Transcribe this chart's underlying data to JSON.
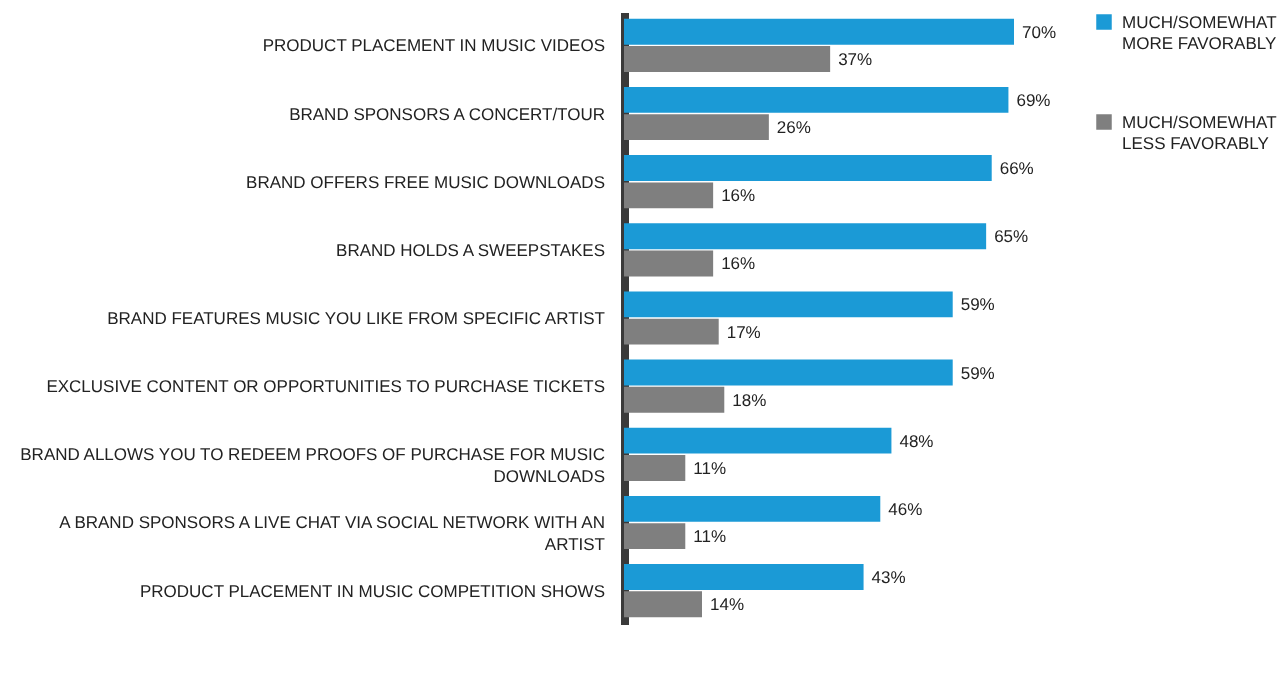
{
  "chart_data": {
    "type": "bar",
    "orientation": "horizontal",
    "legend": "right",
    "categories": [
      "PRODUCT PLACEMENT IN MUSIC VIDEOS",
      "BRAND SPONSORS A CONCERT/TOUR",
      "BRAND OFFERS FREE MUSIC DOWNLOADS",
      "BRAND HOLDS A SWEEPSTAKES",
      "BRAND FEATURES MUSIC YOU LIKE FROM SPECIFIC ARTIST",
      "EXCLUSIVE CONTENT OR OPPORTUNITIES TO PURCHASE TICKETS",
      "BRAND ALLOWS YOU TO REDEEM PROOFS OF PURCHASE FOR MUSIC DOWNLOADS",
      "A BRAND SPONSORS A LIVE CHAT VIA SOCIAL NETWORK WITH AN ARTIST",
      "PRODUCT PLACEMENT IN MUSIC COMPETITION SHOWS"
    ],
    "series": [
      {
        "name": "MUCH/SOMEWHAT MORE FAVORABLY",
        "color": "#1b9ad6",
        "values": [
          70,
          69,
          66,
          65,
          59,
          59,
          48,
          46,
          43
        ],
        "value_labels": [
          "70%",
          "69%",
          "66%",
          "65%",
          "59%",
          "59%",
          "48%",
          "46%",
          "43%"
        ]
      },
      {
        "name": "MUCH/SOMEWHAT LESS FAVORABLY",
        "color": "#7f7f7f",
        "values": [
          37,
          26,
          16,
          16,
          17,
          18,
          11,
          11,
          14
        ],
        "value_labels": [
          "37%",
          "26%",
          "16%",
          "16%",
          "17%",
          "18%",
          "11%",
          "11%",
          "14%"
        ]
      }
    ]
  }
}
